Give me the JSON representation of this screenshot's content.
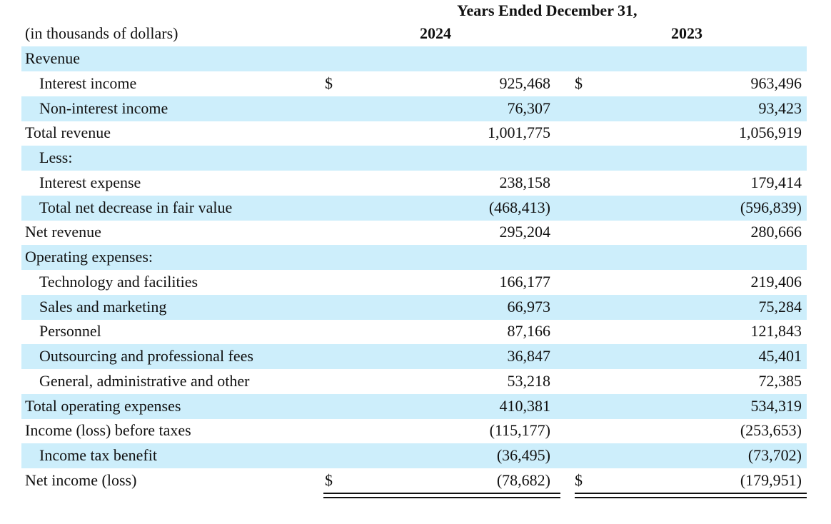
{
  "header": {
    "title": "Years Ended December 31,",
    "units": "(in thousands of dollars)",
    "columns": [
      "2024",
      "2023"
    ]
  },
  "table": {
    "rows": [
      {
        "label": "Revenue"
      },
      {
        "label": "Interest income",
        "dollar_a": "$",
        "a": "925,468",
        "dollar_b": "$",
        "b": "963,496"
      },
      {
        "label": "Non-interest income",
        "a": "76,307",
        "b": "93,423"
      },
      {
        "label": "Total revenue",
        "a": "1,001,775",
        "b": "1,056,919"
      },
      {
        "label": "Less:"
      },
      {
        "label": "Interest expense",
        "a": "238,158",
        "b": "179,414"
      },
      {
        "label": "Total net decrease in fair value",
        "a": "(468,413)",
        "b": "(596,839)"
      },
      {
        "label": "Net revenue",
        "a": "295,204",
        "b": "280,666"
      },
      {
        "label": "Operating expenses:"
      },
      {
        "label": "Technology and facilities",
        "a": "166,177",
        "b": "219,406"
      },
      {
        "label": "Sales and marketing",
        "a": "66,973",
        "b": "75,284"
      },
      {
        "label": "Personnel",
        "a": "87,166",
        "b": "121,843"
      },
      {
        "label": "Outsourcing and professional fees",
        "a": "36,847",
        "b": "45,401"
      },
      {
        "label": "General, administrative and other",
        "a": "53,218",
        "b": "72,385"
      },
      {
        "label": "Total operating expenses",
        "a": "410,381",
        "b": "534,319"
      },
      {
        "label": "Income (loss) before taxes",
        "a": "(115,177)",
        "b": "(253,653)"
      },
      {
        "label": "Income tax benefit",
        "a": "(36,495)",
        "b": "(73,702)"
      },
      {
        "label": "Net income (loss)",
        "dollar_a": "$",
        "a": "(78,682)",
        "dollar_b": "$",
        "b": "(179,951)"
      }
    ]
  }
}
